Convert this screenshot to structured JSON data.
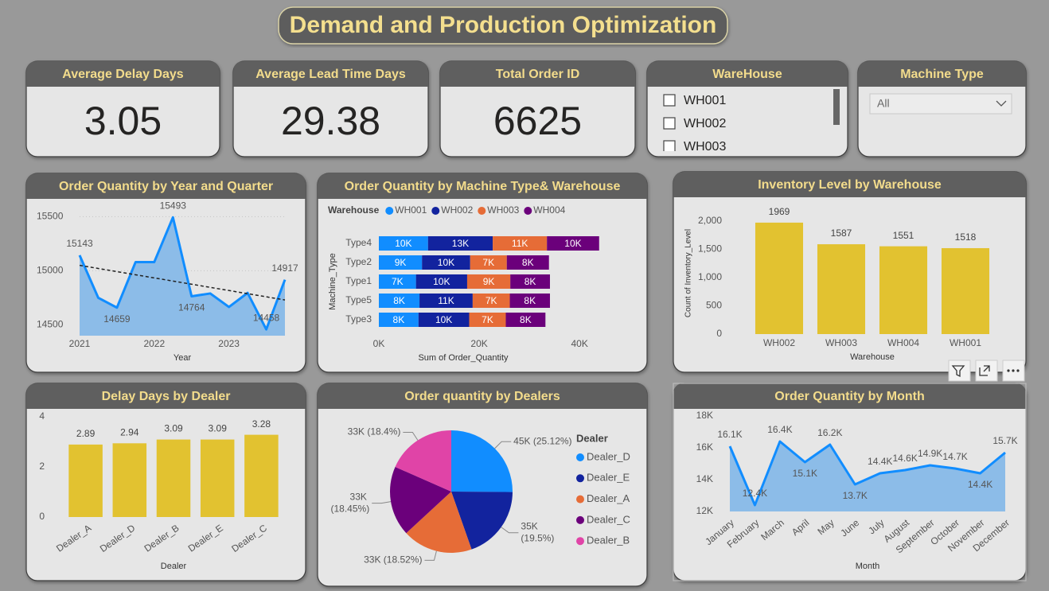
{
  "title": "Demand and Production Optimization",
  "kpis": [
    {
      "label": "Average Delay Days",
      "value": 3.05
    },
    {
      "label": "Average Lead Time Days",
      "value": 29.38
    },
    {
      "label": "Total Order ID",
      "value": 6625
    }
  ],
  "slicers": [
    {
      "title": "WareHouse",
      "options": [
        "WH001",
        "WH002",
        "WH003"
      ]
    },
    {
      "title": "Machine Type",
      "selected": "All"
    }
  ],
  "chart_data": [
    {
      "type": "line",
      "title": "Order Quantity by Year and Quarter",
      "x_label": "Year",
      "categories": [
        "2021",
        null,
        null,
        null,
        "2022",
        null,
        null,
        null,
        "2023",
        null,
        null,
        null
      ],
      "values": [
        15143,
        14750,
        14659,
        15080,
        15080,
        15493,
        14764,
        14790,
        14665,
        14795,
        14458,
        14917
      ],
      "value_labels": [
        "15143",
        null,
        "14659",
        null,
        null,
        "15493",
        "14764",
        null,
        null,
        null,
        "14458",
        "14917"
      ],
      "color": "#118dff",
      "area_color": "#8cbce8",
      "trend": [
        15050,
        14730
      ],
      "ylim": [
        14400,
        15620
      ],
      "yticks": [
        14500,
        15000,
        15500
      ],
      "grid": true
    },
    {
      "type": "bar",
      "orientation": "horizontal",
      "stacked": true,
      "title": "Order Quantity by Machine Type& Warehouse",
      "legend_title": "Warehouse",
      "x_label": "Sum of Order_Quantity",
      "y_label": "Machine_Type",
      "categories": [
        "Type4",
        "Type2",
        "Type1",
        "Type5",
        "Type3"
      ],
      "series": [
        {
          "name": "WH001",
          "color": "#118dff",
          "values": [
            9800,
            8600,
            7400,
            8100,
            7900
          ],
          "value_labels": [
            "10K",
            "9K",
            "7K",
            "8K",
            "8K"
          ]
        },
        {
          "name": "WH002",
          "color": "#12239e",
          "values": [
            12900,
            9600,
            10200,
            10600,
            10100
          ],
          "value_labels": [
            "13K",
            "10K",
            "10K",
            "11K",
            "10K"
          ]
        },
        {
          "name": "WH003",
          "color": "#e66c37",
          "values": [
            10800,
            7300,
            8600,
            7400,
            7300
          ],
          "value_labels": [
            "11K",
            "7K",
            "9K",
            "7K",
            "7K"
          ]
        },
        {
          "name": "WH004",
          "color": "#6b007b",
          "values": [
            10400,
            8400,
            7900,
            8000,
            7900
          ],
          "value_labels": [
            "10K",
            "8K",
            "8K",
            "8K",
            "8K"
          ]
        }
      ],
      "xlim": [
        0,
        46000
      ],
      "xticks": [
        {
          "value": 0,
          "label": "0K"
        },
        {
          "value": 20000,
          "label": "20K"
        },
        {
          "value": 40000,
          "label": "40K"
        }
      ],
      "grid": false
    },
    {
      "type": "bar",
      "title": "Inventory Level by Warehouse",
      "x_label": "Warehouse",
      "y_label": "Count of Inventory_Level",
      "categories": [
        "WH002",
        "WH003",
        "WH004",
        "WH001"
      ],
      "values": [
        1969,
        1587,
        1551,
        1518
      ],
      "color": "#e2c230",
      "ylim": [
        0,
        2150
      ],
      "yticks": [
        0,
        500,
        {
          "value": 1000,
          "label": "1,000"
        },
        {
          "value": 1500,
          "label": "1,500"
        },
        {
          "value": 2000,
          "label": "2,000"
        }
      ],
      "grid": false
    },
    {
      "type": "bar",
      "title": "Delay Days by Dealer",
      "x_label": "Dealer",
      "categories": [
        "Dealer_A",
        "Dealer_D",
        "Dealer_B",
        "Dealer_E",
        "Dealer_C"
      ],
      "values": [
        2.89,
        2.94,
        3.09,
        3.09,
        3.28
      ],
      "color": "#e2c230",
      "ylim": [
        0,
        4.25
      ],
      "yticks": [
        0,
        2,
        4
      ],
      "grid": false
    },
    {
      "type": "pie",
      "title": "Order quantity by Dealers",
      "legend_title": "Dealer",
      "categories": [
        "Dealer_D",
        "Dealer_E",
        "Dealer_A",
        "Dealer_C",
        "Dealer_B"
      ],
      "values": [
        25.12,
        19.5,
        18.52,
        18.45,
        18.4
      ],
      "value_labels": [
        "45K (25.12%)",
        "35K (19.5%)",
        "33K (18.52%)",
        "33K (18.45%)",
        "33K (18.4%)"
      ],
      "colors": [
        "#118dff",
        "#12239e",
        "#e66c37",
        "#6b007b",
        "#e044a7"
      ]
    },
    {
      "type": "line",
      "title": "Order Quantity by Month",
      "x_label": "Month",
      "categories": [
        "January",
        "February",
        "March",
        "April",
        "May",
        "June",
        "July",
        "August",
        "September",
        "October",
        "November",
        "December"
      ],
      "values": [
        16100,
        12400,
        16400,
        15100,
        16200,
        13700,
        14400,
        14600,
        14900,
        14700,
        14400,
        15700
      ],
      "value_labels": [
        "16.1K",
        "12.4K",
        "16.4K",
        "15.1K",
        "16.2K",
        "13.7K",
        "14.4K",
        "14.6K",
        "14.9K",
        "14.7K",
        "14.4K",
        "15.7K"
      ],
      "color": "#118dff",
      "area_color": "#8cbce8",
      "ylim": [
        12000,
        18000
      ],
      "yticks": [
        {
          "value": 12000,
          "label": "12K"
        },
        {
          "value": 14000,
          "label": "14K"
        },
        {
          "value": 16000,
          "label": "16K"
        },
        {
          "value": 18000,
          "label": "18K"
        }
      ],
      "grid": false
    }
  ]
}
